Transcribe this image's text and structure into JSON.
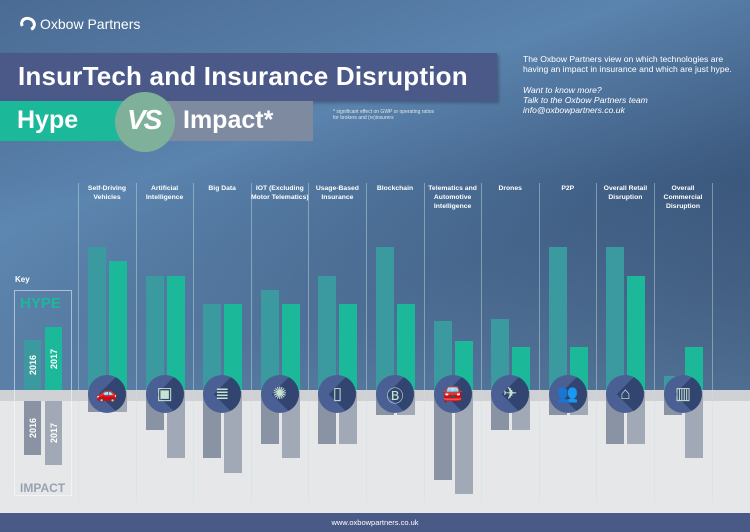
{
  "brand": {
    "name": "Oxbow Partners"
  },
  "header": {
    "title": "InsurTech and Insurance Disruption",
    "hype": "Hype",
    "vs": "VS",
    "impact": "Impact*",
    "footnote_line1": "* significant effect on GWP or operating ratios",
    "footnote_line2": "for brokers and (re)insurers"
  },
  "intro": {
    "text": "The Oxbow Partners view on which technologies are having an impact in insurance and which are just hype.",
    "cta1": "Want to know more?",
    "cta2": "Talk to the Oxbow Partners team",
    "email": "info@oxbowpartners.co.uk"
  },
  "key": {
    "label": "Key",
    "hype": "HYPE",
    "impact": "IMPACT",
    "year1": "2016",
    "year2": "2017"
  },
  "colors": {
    "hype_2016": "#3a9aa0",
    "hype_2017": "#1bb89a",
    "impact_2016": "#8a93a3",
    "impact_2017": "#a2a9b6",
    "icon_bg": "#4a5f94"
  },
  "chart_data": {
    "type": "bar",
    "categories": [
      "Self-Driving Vehicles",
      "Artificial Intelligence",
      "Big Data",
      "IOT (Excluding Motor Telematics)",
      "Usage-Based Insurance",
      "Blockchain",
      "Telematics and Automotive Intelligence",
      "Drones",
      "P2P",
      "Overall Retail Disruption",
      "Overall Commercial Disruption"
    ],
    "icons": [
      "car-icon",
      "robot-icon",
      "database-icon",
      "iot-hub-icon",
      "smartphone-icon",
      "blockchain-icon",
      "connected-car-icon",
      "drone-icon",
      "peer-network-icon",
      "retail-store-icon",
      "commercial-building-icon"
    ],
    "series": [
      {
        "name": "HYPE 2016",
        "direction": "up",
        "values": [
          5,
          4,
          3,
          3.5,
          4,
          5,
          2.4,
          2.5,
          5,
          5,
          0.5
        ]
      },
      {
        "name": "HYPE 2017",
        "direction": "up",
        "values": [
          4.5,
          4,
          3,
          3,
          3,
          3,
          1.7,
          1.5,
          1.5,
          4,
          1.5
        ]
      },
      {
        "name": "IMPACT 2016",
        "direction": "down",
        "values": [
          0.8,
          2,
          4,
          3,
          3,
          1,
          5.5,
          2,
          1,
          3,
          1
        ]
      },
      {
        "name": "IMPACT 2017",
        "direction": "down",
        "values": [
          0.8,
          4,
          5,
          4,
          3,
          1,
          6.5,
          2,
          1,
          3,
          4
        ]
      }
    ],
    "axes": "none",
    "grid": false,
    "legend": "left"
  },
  "footer": {
    "url": "www.oxbowpartners.co.uk"
  }
}
